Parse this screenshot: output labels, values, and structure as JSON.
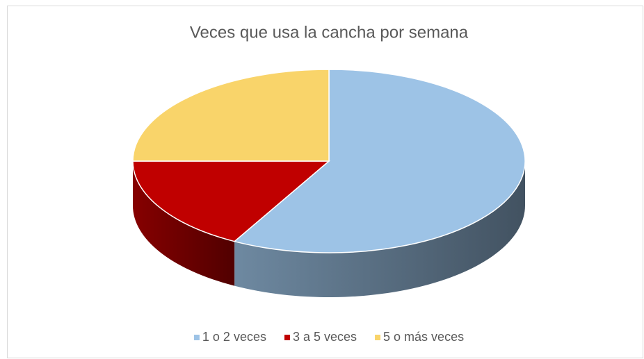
{
  "chart_data": {
    "type": "pie3d",
    "title": "Veces que usa la cancha por semana",
    "categories": [
      "1 o 2 veces",
      "3 a 5 veces",
      "5 o más veces"
    ],
    "values": [
      58,
      17,
      25
    ],
    "colors": [
      "#9dc3e6",
      "#c00000",
      "#f9d46a"
    ],
    "legend": "bottom"
  }
}
